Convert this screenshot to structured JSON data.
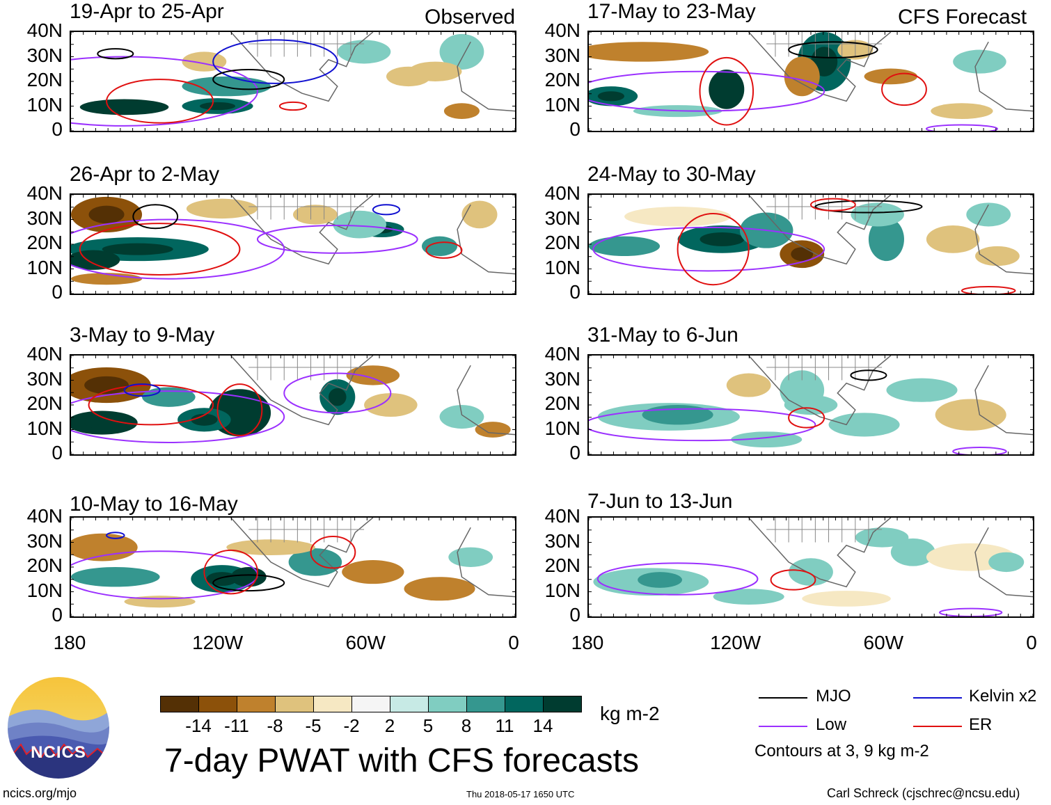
{
  "panels": [
    {
      "title": "19-Apr to 25-Apr",
      "tag": "Observed"
    },
    {
      "title": "17-May to 23-May",
      "tag": "CFS Forecast"
    },
    {
      "title": "26-Apr to 2-May",
      "tag": ""
    },
    {
      "title": "24-May to 30-May",
      "tag": ""
    },
    {
      "title": "3-May to 9-May",
      "tag": ""
    },
    {
      "title": "31-May to 6-Jun",
      "tag": ""
    },
    {
      "title": "10-May to 16-May",
      "tag": ""
    },
    {
      "title": "7-Jun to 13-Jun",
      "tag": ""
    }
  ],
  "lat_labels": [
    "40N",
    "30N",
    "20N",
    "10N",
    "0"
  ],
  "lon_labels": [
    "180",
    "120W",
    "60W",
    "0"
  ],
  "colorbar": {
    "colors": [
      "#543005",
      "#8c510a",
      "#bf812d",
      "#dfc27d",
      "#f6e8c3",
      "#f5f5f5",
      "#c7eae5",
      "#80cdc1",
      "#35978f",
      "#01665e",
      "#003c30"
    ],
    "labels": [
      "-14",
      "-11",
      "-8",
      "-5",
      "-2",
      "2",
      "5",
      "8",
      "11",
      "14"
    ],
    "units": "kg m-2"
  },
  "main_title": "7-day PWAT with CFS forecasts",
  "legend": {
    "items": [
      {
        "label": "MJO",
        "color": "#000000"
      },
      {
        "label": "Kelvin x2",
        "color": "#1010d0"
      },
      {
        "label": "Low",
        "color": "#9b30ff"
      },
      {
        "label": "ER",
        "color": "#e01010"
      }
    ],
    "note": "Contours at 3, 9 kg m-2"
  },
  "logo": {
    "text": "NCICS"
  },
  "footer": {
    "url": "ncics.org/mjo",
    "timestamp": "Thu 2018-05-17 1650 UTC",
    "credit": "Carl Schreck (cjschrec@ncsu.edu)"
  }
}
